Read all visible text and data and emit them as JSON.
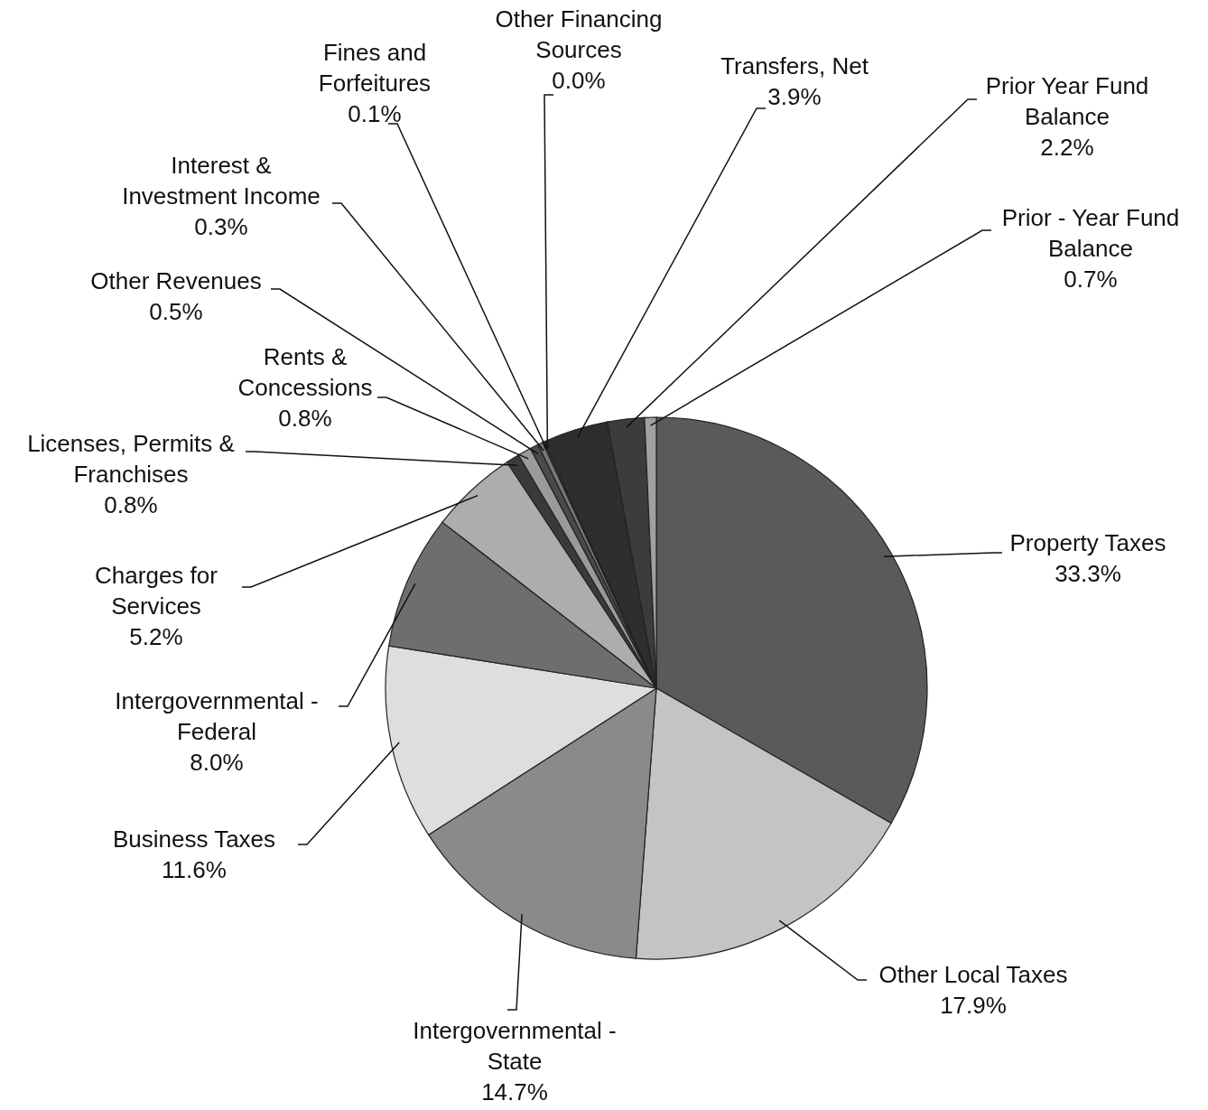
{
  "chart_data": {
    "type": "pie",
    "categories": [
      "Property Taxes",
      "Other Local Taxes",
      "Intergovernmental - State",
      "Business Taxes",
      "Intergovernmental - Federal",
      "Charges for Services",
      "Licenses, Permits & Franchises",
      "Rents & Concessions",
      "Other Revenues",
      "Interest & Investment Income",
      "Fines and Forfeitures",
      "Other Financing Sources",
      "Transfers, Net",
      "Prior Year Fund Balance",
      "Prior - Year Fund Balance"
    ],
    "values": [
      33.3,
      17.9,
      14.7,
      11.6,
      8.0,
      5.2,
      0.8,
      0.8,
      0.5,
      0.3,
      0.1,
      0.0,
      3.9,
      2.2,
      0.7
    ],
    "value_labels": [
      "33.3%",
      "17.9%",
      "14.7%",
      "11.6%",
      "8.0%",
      "5.2%",
      "0.8%",
      "0.8%",
      "0.5%",
      "0.3%",
      "0.1%",
      "0.0%",
      "3.9%",
      "2.2%",
      "0.7%"
    ],
    "colors": [
      "#5a5a5a",
      "#c4c4c4",
      "#8a8a8a",
      "#dedede",
      "#6e6e6e",
      "#adadad",
      "#3a3a3a",
      "#9a9a9a",
      "#4a4a4a",
      "#777777",
      "#555555",
      "#444444",
      "#2e2e2e",
      "#3c3c3c",
      "#a0a0a0"
    ],
    "legend": false
  }
}
